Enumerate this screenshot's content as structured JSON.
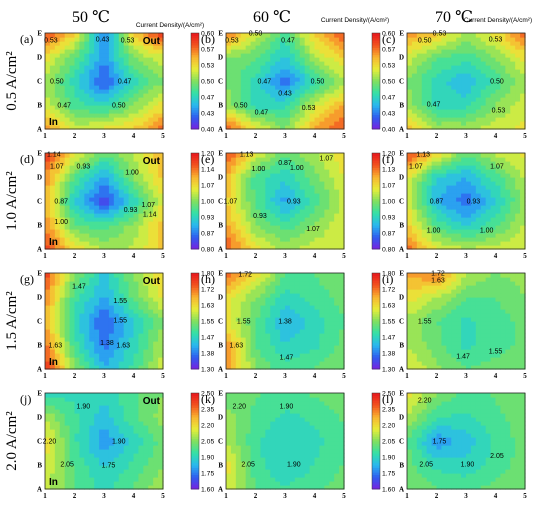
{
  "figure": {
    "columns": [
      "50 ℃",
      "60 ℃",
      "70 ℃"
    ],
    "rows": [
      "0.5 A/cm²",
      "1.0 A/cm²",
      "1.5 A/cm²",
      "2.0 A/cm²"
    ],
    "colorbar_title": "Current Density/(A/cm²)",
    "colorbar_title_first": "Current Density/(A/cm²)",
    "x_ticks": [
      "1",
      "2",
      "3",
      "4",
      "5"
    ],
    "y_ticks": [
      "A",
      "B",
      "C",
      "D",
      "E"
    ],
    "inlet_label": "In",
    "outlet_label": "Out"
  },
  "colors": {
    "scale": [
      "#7a1fe0",
      "#2f5cf0",
      "#2ab8f0",
      "#34e0a8",
      "#7fe060",
      "#e6ee3a",
      "#f9b531",
      "#f2521e",
      "#e8181e"
    ]
  },
  "chart_data": [
    {
      "type": "heatmap",
      "panel": "(a)",
      "row": 0,
      "col": 0,
      "temperature": "50 ℃",
      "current_density": "0.5 A/cm²",
      "range": [
        0.4,
        0.6
      ],
      "colorbar_ticks": [
        "0.60",
        "0.57",
        "0.53",
        "0.50",
        "0.47",
        "0.43",
        "0.40"
      ],
      "grid": [
        [
          0.56,
          0.52,
          0.53,
          0.54,
          0.57
        ],
        [
          0.52,
          0.48,
          0.47,
          0.5,
          0.53
        ],
        [
          0.51,
          0.47,
          0.42,
          0.47,
          0.5
        ],
        [
          0.53,
          0.49,
          0.44,
          0.5,
          0.52
        ],
        [
          0.58,
          0.54,
          0.43,
          0.54,
          0.59
        ]
      ],
      "labels": [
        {
          "t": "0.53",
          "x": 1.2,
          "y": 4.7
        },
        {
          "t": "0.43",
          "x": 2.95,
          "y": 4.75
        },
        {
          "t": "0.53",
          "x": 3.8,
          "y": 4.7
        },
        {
          "t": "0.50",
          "x": 1.4,
          "y": 3.0
        },
        {
          "t": "0.47",
          "x": 3.7,
          "y": 3.0
        },
        {
          "t": "0.47",
          "x": 1.65,
          "y": 2.0
        },
        {
          "t": "0.50",
          "x": 3.5,
          "y": 2.0
        }
      ]
    },
    {
      "type": "heatmap",
      "panel": "(b)",
      "row": 0,
      "col": 1,
      "temperature": "60 ℃",
      "current_density": "0.5 A/cm²",
      "range": [
        0.4,
        0.6
      ],
      "colorbar_ticks": [
        "0.60",
        "0.57",
        "0.53",
        "0.50",
        "0.47",
        "0.43",
        "0.40"
      ],
      "grid": [
        [
          0.58,
          0.53,
          0.5,
          0.55,
          0.58
        ],
        [
          0.51,
          0.47,
          0.47,
          0.52,
          0.55
        ],
        [
          0.5,
          0.47,
          0.43,
          0.47,
          0.51
        ],
        [
          0.5,
          0.49,
          0.46,
          0.51,
          0.54
        ],
        [
          0.57,
          0.52,
          0.48,
          0.54,
          0.58
        ]
      ],
      "labels": [
        {
          "t": "0.50",
          "x": 2.0,
          "y": 5.0
        },
        {
          "t": "0.53",
          "x": 1.2,
          "y": 4.7
        },
        {
          "t": "0.47",
          "x": 3.1,
          "y": 4.7
        },
        {
          "t": "0.47",
          "x": 2.3,
          "y": 3.0
        },
        {
          "t": "0.50",
          "x": 4.1,
          "y": 3.0
        },
        {
          "t": "0.43",
          "x": 3.0,
          "y": 2.5
        },
        {
          "t": "0.50",
          "x": 1.5,
          "y": 2.0
        },
        {
          "t": "0.53",
          "x": 3.8,
          "y": 1.9
        },
        {
          "t": "0.47",
          "x": 2.2,
          "y": 1.7
        }
      ]
    },
    {
      "type": "heatmap",
      "panel": "(c)",
      "row": 0,
      "col": 2,
      "temperature": "70 ℃",
      "current_density": "0.5 A/cm²",
      "range": [
        0.4,
        0.6
      ],
      "colorbar_ticks": [
        "0.60",
        "0.57",
        "0.53",
        "0.50",
        "0.47",
        "0.43",
        "0.40"
      ],
      "grid": [
        [
          0.55,
          0.51,
          0.51,
          0.52,
          0.53
        ],
        [
          0.51,
          0.47,
          0.47,
          0.5,
          0.52
        ],
        [
          0.5,
          0.47,
          0.45,
          0.48,
          0.51
        ],
        [
          0.52,
          0.49,
          0.48,
          0.5,
          0.53
        ],
        [
          0.56,
          0.54,
          0.51,
          0.53,
          0.57
        ]
      ],
      "labels": [
        {
          "t": "0.53",
          "x": 2.1,
          "y": 5.0
        },
        {
          "t": "0.50",
          "x": 1.6,
          "y": 4.7
        },
        {
          "t": "0.53",
          "x": 4.0,
          "y": 4.75
        },
        {
          "t": "0.50",
          "x": 4.05,
          "y": 3.0
        },
        {
          "t": "0.47",
          "x": 1.9,
          "y": 2.05
        },
        {
          "t": "0.53",
          "x": 4.1,
          "y": 1.8
        }
      ]
    },
    {
      "type": "heatmap",
      "panel": "(d)",
      "row": 1,
      "col": 0,
      "temperature": "50 ℃",
      "current_density": "1.0 A/cm²",
      "range": [
        0.8,
        1.2
      ],
      "colorbar_ticks": [
        "1.20",
        "1.14",
        "1.07",
        "1.00",
        "0.93",
        "0.87",
        "0.80"
      ],
      "grid": [
        [
          1.17,
          1.07,
          1.02,
          1.03,
          1.08
        ],
        [
          1.12,
          0.98,
          0.96,
          1.01,
          1.09
        ],
        [
          1.1,
          0.92,
          0.83,
          0.93,
          1.05
        ],
        [
          1.12,
          0.97,
          0.89,
          1.0,
          1.08
        ],
        [
          1.18,
          1.06,
          0.98,
          1.03,
          1.1
        ]
      ],
      "labels": [
        {
          "t": "1.14",
          "x": 1.3,
          "y": 4.95
        },
        {
          "t": "1.07",
          "x": 1.4,
          "y": 4.45
        },
        {
          "t": "0.93",
          "x": 2.3,
          "y": 4.45
        },
        {
          "t": "1.00",
          "x": 3.95,
          "y": 4.2
        },
        {
          "t": "0.87",
          "x": 1.55,
          "y": 3.0
        },
        {
          "t": "1.07",
          "x": 4.5,
          "y": 2.85
        },
        {
          "t": "0.93",
          "x": 3.9,
          "y": 2.65
        },
        {
          "t": "1.14",
          "x": 4.55,
          "y": 2.45
        },
        {
          "t": "1.00",
          "x": 1.55,
          "y": 2.15
        }
      ]
    },
    {
      "type": "heatmap",
      "panel": "(e)",
      "row": 1,
      "col": 1,
      "temperature": "60 ℃",
      "current_density": "1.0 A/cm²",
      "range": [
        0.8,
        1.2
      ],
      "colorbar_ticks": [
        "1.20",
        "1.13",
        "1.07",
        "1.00",
        "0.93",
        "0.87",
        "0.80"
      ],
      "grid": [
        [
          1.15,
          1.06,
          1.02,
          1.04,
          1.05
        ],
        [
          1.11,
          1.0,
          0.96,
          1.0,
          1.05
        ],
        [
          1.08,
          0.97,
          0.89,
          0.96,
          1.03
        ],
        [
          1.1,
          0.96,
          0.93,
          0.99,
          1.05
        ],
        [
          1.16,
          1.05,
          0.98,
          1.02,
          1.07
        ]
      ],
      "labels": [
        {
          "t": "1.13",
          "x": 1.7,
          "y": 4.95
        },
        {
          "t": "1.07",
          "x": 4.4,
          "y": 4.8
        },
        {
          "t": "0.87",
          "x": 3.0,
          "y": 4.6
        },
        {
          "t": "1.00",
          "x": 2.1,
          "y": 4.35
        },
        {
          "t": "1.00",
          "x": 3.4,
          "y": 4.4
        },
        {
          "t": "1.07",
          "x": 1.15,
          "y": 3.0
        },
        {
          "t": "0.93",
          "x": 3.3,
          "y": 3.0
        },
        {
          "t": "0.93",
          "x": 2.15,
          "y": 2.4
        },
        {
          "t": "1.07",
          "x": 3.95,
          "y": 1.85
        }
      ]
    },
    {
      "type": "heatmap",
      "panel": "(f)",
      "row": 1,
      "col": 2,
      "temperature": "70 ℃",
      "current_density": "1.0 A/cm²",
      "range": [
        0.8,
        1.2
      ],
      "colorbar_ticks": [
        "1.20",
        "1.13",
        "1.07",
        "1.00",
        "0.93",
        "0.87",
        "0.80"
      ],
      "grid": [
        [
          1.14,
          1.05,
          1.03,
          1.04,
          1.05
        ],
        [
          1.08,
          0.97,
          0.92,
          0.97,
          1.03
        ],
        [
          1.05,
          0.9,
          0.86,
          0.92,
          1.01
        ],
        [
          1.06,
          0.92,
          0.9,
          0.96,
          1.03
        ],
        [
          1.16,
          1.08,
          0.98,
          1.03,
          1.06
        ]
      ],
      "labels": [
        {
          "t": "1.13",
          "x": 1.55,
          "y": 4.95
        },
        {
          "t": "1.07",
          "x": 1.3,
          "y": 4.45
        },
        {
          "t": "1.07",
          "x": 4.05,
          "y": 4.45
        },
        {
          "t": "0.87",
          "x": 2.0,
          "y": 3.0
        },
        {
          "t": "0.93",
          "x": 3.25,
          "y": 3.0
        },
        {
          "t": "1.00",
          "x": 1.9,
          "y": 1.8
        },
        {
          "t": "1.00",
          "x": 3.7,
          "y": 1.8
        }
      ]
    },
    {
      "type": "heatmap",
      "panel": "(g)",
      "row": 2,
      "col": 0,
      "temperature": "50 ℃",
      "current_density": "1.5 A/cm²",
      "range": [
        1.3,
        1.8
      ],
      "colorbar_ticks": [
        "1.80",
        "1.72",
        "1.63",
        "1.55",
        "1.47",
        "1.38",
        "1.30"
      ],
      "grid": [
        [
          1.78,
          1.56,
          1.43,
          1.5,
          1.6
        ],
        [
          1.72,
          1.5,
          1.38,
          1.47,
          1.58
        ],
        [
          1.68,
          1.47,
          1.36,
          1.45,
          1.55
        ],
        [
          1.7,
          1.5,
          1.42,
          1.53,
          1.62
        ],
        [
          1.76,
          1.55,
          1.45,
          1.55,
          1.65
        ]
      ],
      "labels": [
        {
          "t": "1.47",
          "x": 2.15,
          "y": 4.45
        },
        {
          "t": "1.55",
          "x": 3.55,
          "y": 3.85
        },
        {
          "t": "1.55",
          "x": 3.55,
          "y": 3.05
        },
        {
          "t": "1.63",
          "x": 1.35,
          "y": 2.0
        },
        {
          "t": "1.38",
          "x": 3.1,
          "y": 2.1
        },
        {
          "t": "1.63",
          "x": 3.65,
          "y": 2.0
        }
      ]
    },
    {
      "type": "heatmap",
      "panel": "(h)",
      "row": 2,
      "col": 1,
      "temperature": "60 ℃",
      "current_density": "1.5 A/cm²",
      "range": [
        1.3,
        1.8
      ],
      "colorbar_ticks": [
        "1.80",
        "1.72",
        "1.63",
        "1.55",
        "1.47",
        "1.38",
        "1.30"
      ],
      "grid": [
        [
          1.7,
          1.55,
          1.5,
          1.52,
          1.55
        ],
        [
          1.7,
          1.52,
          1.46,
          1.48,
          1.53
        ],
        [
          1.62,
          1.52,
          1.42,
          1.47,
          1.52
        ],
        [
          1.63,
          1.55,
          1.47,
          1.5,
          1.53
        ],
        [
          1.74,
          1.64,
          1.52,
          1.52,
          1.55
        ]
      ],
      "labels": [
        {
          "t": "1.72",
          "x": 1.65,
          "y": 4.95
        },
        {
          "t": "1.55",
          "x": 1.6,
          "y": 3.0
        },
        {
          "t": "1.38",
          "x": 3.0,
          "y": 3.0
        },
        {
          "t": "1.63",
          "x": 1.35,
          "y": 2.0
        },
        {
          "t": "1.47",
          "x": 3.05,
          "y": 1.5
        }
      ]
    },
    {
      "type": "heatmap",
      "panel": "(i)",
      "row": 2,
      "col": 2,
      "temperature": "70 ℃",
      "current_density": "1.5 A/cm²",
      "range": [
        1.3,
        1.8
      ],
      "colorbar_ticks": [
        "1.80",
        "1.72",
        "1.63",
        "1.55",
        "1.47",
        "1.38",
        "1.30"
      ],
      "grid": [
        [
          1.62,
          1.56,
          1.52,
          1.54,
          1.55
        ],
        [
          1.58,
          1.53,
          1.48,
          1.5,
          1.53
        ],
        [
          1.57,
          1.52,
          1.48,
          1.5,
          1.53
        ],
        [
          1.63,
          1.58,
          1.52,
          1.52,
          1.55
        ],
        [
          1.68,
          1.72,
          1.58,
          1.55,
          1.56
        ]
      ],
      "labels": [
        {
          "t": "1.72",
          "x": 2.05,
          "y": 5.0
        },
        {
          "t": "1.63",
          "x": 2.05,
          "y": 4.7
        },
        {
          "t": "1.55",
          "x": 1.6,
          "y": 3.0
        },
        {
          "t": "1.47",
          "x": 2.9,
          "y": 1.55
        },
        {
          "t": "1.55",
          "x": 4.0,
          "y": 1.75
        }
      ]
    },
    {
      "type": "heatmap",
      "panel": "(j)",
      "row": 3,
      "col": 0,
      "temperature": "50 ℃",
      "current_density": "2.0 A/cm²",
      "range": [
        1.6,
        2.5
      ],
      "colorbar_ticks": [
        "2.50",
        "2.35",
        "2.20",
        "2.05",
        "1.90",
        "1.75",
        "1.60"
      ],
      "grid": [
        [
          2.12,
          2.0,
          1.92,
          2.0,
          2.1
        ],
        [
          2.16,
          1.98,
          1.88,
          1.95,
          2.05
        ],
        [
          2.2,
          1.95,
          1.78,
          1.9,
          2.02
        ],
        [
          2.1,
          1.95,
          1.85,
          1.98,
          2.08
        ],
        [
          1.92,
          1.92,
          1.9,
          1.98,
          2.05
        ]
      ],
      "labels": [
        {
          "t": "1.90",
          "x": 2.3,
          "y": 4.45
        },
        {
          "t": "2.20",
          "x": 1.15,
          "y": 3.0
        },
        {
          "t": "1.90",
          "x": 3.5,
          "y": 3.0
        },
        {
          "t": "2.05",
          "x": 1.75,
          "y": 2.05
        },
        {
          "t": "1.75",
          "x": 3.15,
          "y": 2.0
        }
      ]
    },
    {
      "type": "heatmap",
      "panel": "(k)",
      "row": 3,
      "col": 1,
      "temperature": "60 ℃",
      "current_density": "2.0 A/cm²",
      "range": [
        1.6,
        2.5
      ],
      "colorbar_ticks": [
        "2.50",
        "2.35",
        "2.20",
        "2.05",
        "1.90",
        "1.75",
        "1.60"
      ],
      "grid": [
        [
          2.15,
          2.0,
          1.95,
          1.98,
          2.02
        ],
        [
          2.2,
          1.96,
          1.88,
          1.94,
          2.0
        ],
        [
          2.1,
          1.95,
          1.88,
          1.92,
          1.98
        ],
        [
          2.08,
          1.98,
          1.92,
          1.95,
          2.0
        ],
        [
          2.0,
          2.0,
          1.98,
          2.0,
          2.04
        ]
      ],
      "labels": [
        {
          "t": "2.20",
          "x": 1.45,
          "y": 4.45
        },
        {
          "t": "1.90",
          "x": 3.05,
          "y": 4.45
        },
        {
          "t": "2.05",
          "x": 1.75,
          "y": 2.05
        },
        {
          "t": "1.90",
          "x": 3.3,
          "y": 2.05
        }
      ]
    },
    {
      "type": "heatmap",
      "panel": "(l)",
      "row": 3,
      "col": 2,
      "temperature": "70 ℃",
      "current_density": "2.0 A/cm²",
      "range": [
        1.6,
        2.5
      ],
      "colorbar_ticks": [
        "2.50",
        "2.35",
        "2.20",
        "2.05",
        "1.90",
        "1.75",
        "1.60"
      ],
      "grid": [
        [
          2.05,
          2.0,
          1.98,
          2.02,
          2.04
        ],
        [
          2.02,
          1.92,
          1.9,
          1.96,
          2.02
        ],
        [
          2.0,
          1.78,
          1.85,
          1.95,
          2.02
        ],
        [
          2.1,
          1.94,
          1.92,
          1.98,
          2.02
        ],
        [
          2.2,
          2.05,
          1.98,
          2.0,
          2.04
        ]
      ],
      "labels": [
        {
          "t": "2.20",
          "x": 1.6,
          "y": 4.7
        },
        {
          "t": "1.75",
          "x": 2.1,
          "y": 3.0
        },
        {
          "t": "2.05",
          "x": 1.65,
          "y": 2.05
        },
        {
          "t": "1.90",
          "x": 3.05,
          "y": 2.05
        },
        {
          "t": "2.05",
          "x": 4.05,
          "y": 2.4
        }
      ]
    }
  ]
}
